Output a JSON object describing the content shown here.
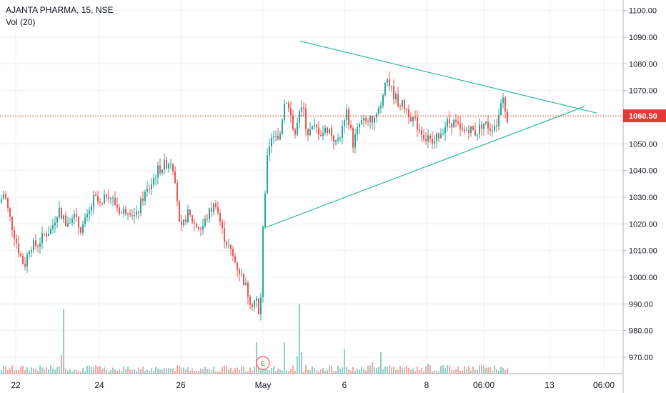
{
  "legend": {
    "title": "AJANTA PHARMA, 15, NSE",
    "volume": "Vol (20)"
  },
  "colors": {
    "up": "#26a69a",
    "down": "#ef5350",
    "up_volume": "#8fd0c7",
    "down_volume": "#f5a6a4",
    "trendline": "#2bb8a5",
    "last_price_line": "#e53935",
    "grid": "#eef0f3",
    "axis_text": "#131722"
  },
  "chart_data": {
    "type": "candlestick",
    "title": "AJANTA PHARMA, 15, NSE",
    "xlabel": "",
    "ylabel": "",
    "ylim": [
      962,
      1104
    ],
    "y_ticks": [
      "1100.00",
      "1090.00",
      "1080.00",
      "1070.00",
      "1060.00",
      "1050.00",
      "1040.00",
      "1030.00",
      "1020.00",
      "1010.00",
      "1000.00",
      "990.00",
      "980.00",
      "970.00"
    ],
    "x_tick_labels": [
      "22",
      "24",
      "26",
      "May",
      "6",
      "8",
      "06:00",
      "13",
      "06:00"
    ],
    "last_price": 1060.5,
    "last_price_label": "1060.50",
    "event_marker": "E",
    "price_path": [
      [
        0,
        1028
      ],
      [
        6,
        1032
      ],
      [
        12,
        1024
      ],
      [
        20,
        1016
      ],
      [
        26,
        1010
      ],
      [
        34,
        1004
      ],
      [
        42,
        1012
      ],
      [
        52,
        1012
      ],
      [
        62,
        1016
      ],
      [
        72,
        1018
      ],
      [
        82,
        1026
      ],
      [
        92,
        1020
      ],
      [
        102,
        1024
      ],
      [
        112,
        1018
      ],
      [
        122,
        1022
      ],
      [
        132,
        1030
      ],
      [
        142,
        1026
      ],
      [
        150,
        1032
      ],
      [
        160,
        1028
      ],
      [
        170,
        1024
      ],
      [
        180,
        1026
      ],
      [
        190,
        1022
      ],
      [
        200,
        1030
      ],
      [
        210,
        1034
      ],
      [
        220,
        1040
      ],
      [
        230,
        1042
      ],
      [
        240,
        1044
      ],
      [
        246,
        1036
      ],
      [
        252,
        1016
      ],
      [
        262,
        1024
      ],
      [
        272,
        1020
      ],
      [
        282,
        1018
      ],
      [
        292,
        1024
      ],
      [
        302,
        1028
      ],
      [
        312,
        1016
      ],
      [
        322,
        1010
      ],
      [
        332,
        1004
      ],
      [
        342,
        998
      ],
      [
        352,
        990
      ],
      [
        358,
        992
      ],
      [
        364,
        982
      ],
      [
        368,
        1020
      ],
      [
        374,
        1044
      ],
      [
        382,
        1054
      ],
      [
        390,
        1050
      ],
      [
        398,
        1066
      ],
      [
        406,
        1062
      ],
      [
        412,
        1052
      ],
      [
        418,
        1060
      ],
      [
        424,
        1064
      ],
      [
        430,
        1054
      ],
      [
        440,
        1056
      ],
      [
        450,
        1054
      ],
      [
        460,
        1056
      ],
      [
        470,
        1050
      ],
      [
        480,
        1056
      ],
      [
        486,
        1062
      ],
      [
        494,
        1050
      ],
      [
        504,
        1058
      ],
      [
        514,
        1058
      ],
      [
        524,
        1060
      ],
      [
        534,
        1066
      ],
      [
        540,
        1076
      ],
      [
        548,
        1070
      ],
      [
        556,
        1066
      ],
      [
        566,
        1064
      ],
      [
        576,
        1060
      ],
      [
        586,
        1056
      ],
      [
        596,
        1052
      ],
      [
        606,
        1050
      ],
      [
        616,
        1054
      ],
      [
        626,
        1058
      ],
      [
        636,
        1058
      ],
      [
        646,
        1054
      ],
      [
        656,
        1056
      ],
      [
        666,
        1054
      ],
      [
        676,
        1058
      ],
      [
        686,
        1056
      ],
      [
        696,
        1058
      ],
      [
        702,
        1068
      ],
      [
        708,
        1062
      ],
      [
        710,
        1060
      ]
    ],
    "volume_events": [
      [
        88,
        91
      ],
      [
        360,
        44
      ],
      [
        372,
        24
      ],
      [
        398,
        44
      ],
      [
        418,
        98
      ],
      [
        482,
        34
      ],
      [
        520,
        16
      ],
      [
        534,
        30
      ],
      [
        600,
        14
      ],
      [
        700,
        10
      ]
    ],
    "trendlines": [
      {
        "from": [
          420,
          1088.5
        ],
        "to": [
          836,
          1061.5
        ]
      },
      {
        "from": [
          370,
          1018.5
        ],
        "to": [
          818,
          1064.0
        ]
      }
    ]
  }
}
